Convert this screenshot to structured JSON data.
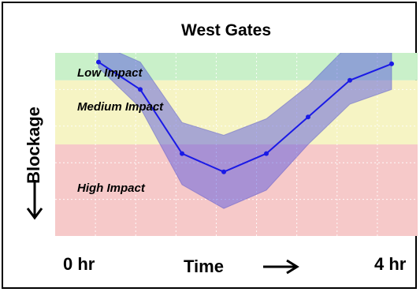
{
  "chart_data": {
    "type": "line",
    "title": "West Gates",
    "xlabel": "Time",
    "ylabel": "Blockage",
    "x_tick_labels": [
      "0 hr",
      "4 hr"
    ],
    "xlim": [
      0,
      4
    ],
    "zones": [
      {
        "label": "Low Impact",
        "from": 0.0,
        "to": 0.15,
        "color": "#c9f0c9"
      },
      {
        "label": "Medium Impact",
        "from": 0.15,
        "to": 0.5,
        "color": "#f6f4c4"
      },
      {
        "label": "High Impact",
        "from": 0.5,
        "to": 1.0,
        "color": "#f6c9c9"
      }
    ],
    "series": [
      {
        "x": [
          0,
          0.57,
          1.14,
          1.71,
          2.29,
          2.86,
          3.43,
          4.0
        ],
        "values": [
          0.05,
          0.2,
          0.55,
          0.65,
          0.55,
          0.35,
          0.15,
          0.06
        ],
        "band_upper": [
          -0.05,
          0.05,
          0.38,
          0.45,
          0.36,
          0.18,
          -0.05,
          -0.05
        ],
        "band_lower": [
          0.08,
          0.3,
          0.72,
          0.85,
          0.75,
          0.5,
          0.28,
          0.2
        ],
        "line_color": "#1a1ae6",
        "band_color": "#5a5ae0"
      }
    ],
    "grid": true
  }
}
